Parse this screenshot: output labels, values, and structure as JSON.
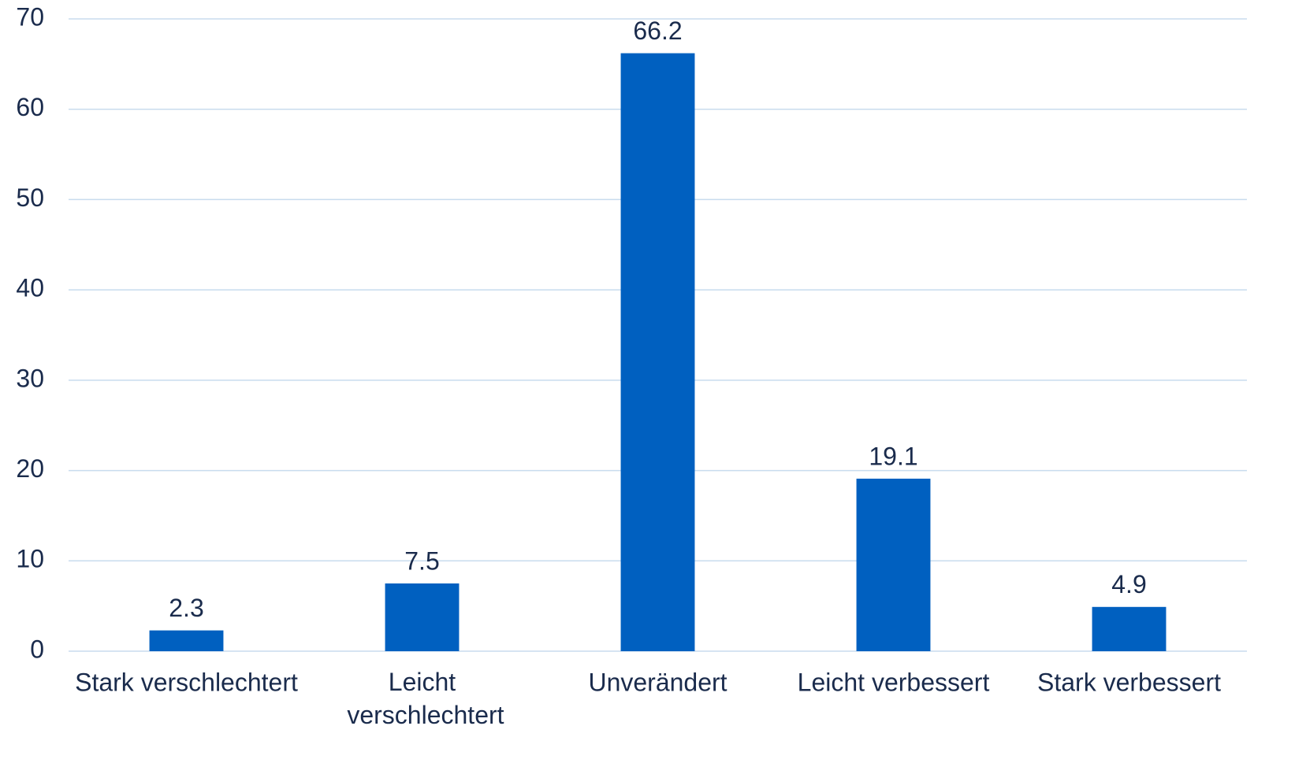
{
  "chart_data": {
    "type": "bar",
    "categories": [
      "Stark verschlechtert",
      "Leicht verschlechtert",
      "Unverändert",
      "Leicht verbessert",
      "Stark verbessert"
    ],
    "values": [
      2.3,
      7.5,
      66.2,
      19.1,
      4.9
    ],
    "color": "#0060c0",
    "ylim": [
      0,
      70
    ],
    "yticks": [
      0,
      10,
      20,
      30,
      40,
      50,
      60,
      70
    ],
    "grid": true
  }
}
